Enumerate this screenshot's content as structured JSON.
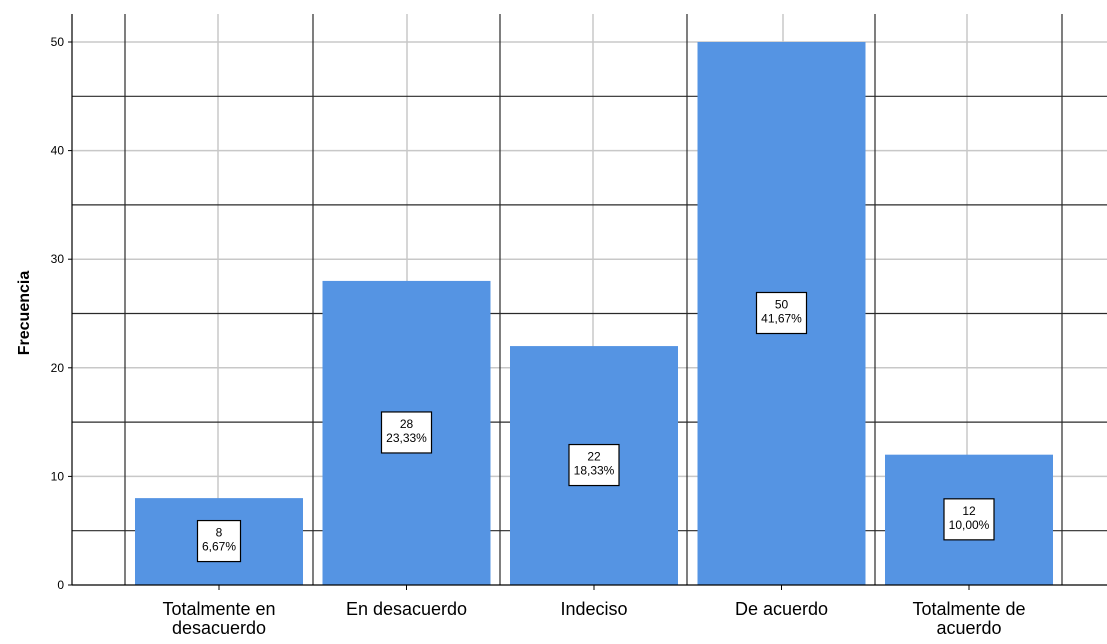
{
  "chart_data": {
    "type": "bar",
    "title": "",
    "xlabel": "",
    "ylabel": "Frecuencia",
    "categories": [
      "Totalmente en desacuerdo",
      "En desacuerdo",
      "Indeciso",
      "De acuerdo",
      "Totalmente de acuerdo"
    ],
    "category_lines": [
      [
        "Totalmente en",
        "desacuerdo"
      ],
      [
        "En desacuerdo"
      ],
      [
        "Indeciso"
      ],
      [
        "De acuerdo"
      ],
      [
        "Totalmente de",
        "acuerdo"
      ]
    ],
    "values": [
      8,
      28,
      22,
      50,
      12
    ],
    "percent_labels": [
      "6,67%",
      "23,33%",
      "18,33%",
      "41,67%",
      "10,00%"
    ],
    "ylim": [
      0,
      50
    ],
    "yticks": [
      "0",
      "10",
      "20",
      "30",
      "40",
      "50"
    ],
    "grid": true,
    "legend": "none",
    "bar_color": "#5594E3"
  }
}
